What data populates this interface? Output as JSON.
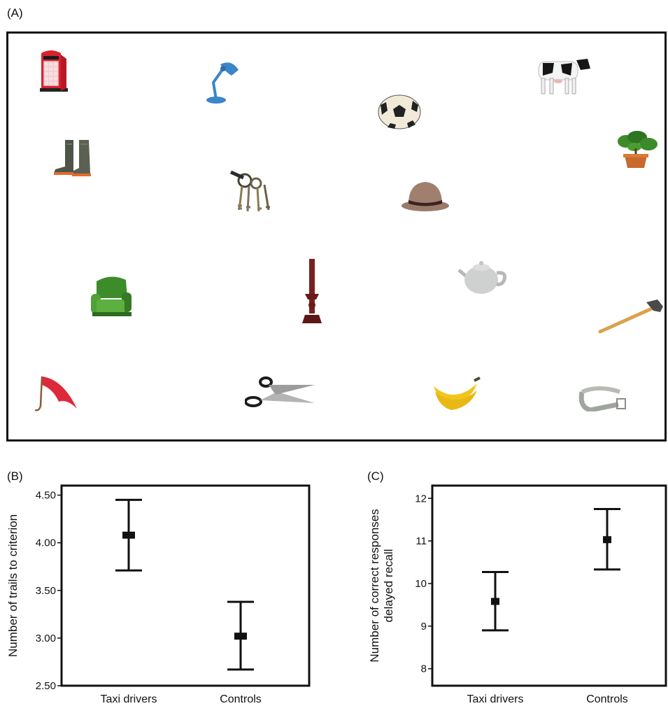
{
  "panel_labels": {
    "a": "(A)",
    "b": "(B)",
    "c": "(C)"
  },
  "objects": [
    {
      "name": "phone-box",
      "icon": "phone-box-icon"
    },
    {
      "name": "lamp",
      "icon": "desk-lamp-icon"
    },
    {
      "name": "football",
      "icon": "football-icon"
    },
    {
      "name": "cow",
      "icon": "cow-icon"
    },
    {
      "name": "boots",
      "icon": "boots-icon"
    },
    {
      "name": "keys",
      "icon": "keys-icon"
    },
    {
      "name": "hat",
      "icon": "hat-icon"
    },
    {
      "name": "plant",
      "icon": "potted-plant-icon"
    },
    {
      "name": "armchair",
      "icon": "armchair-icon"
    },
    {
      "name": "candlestick",
      "icon": "candlestick-icon"
    },
    {
      "name": "teapot",
      "icon": "teapot-icon"
    },
    {
      "name": "axe",
      "icon": "axe-icon"
    },
    {
      "name": "umbrella",
      "icon": "umbrella-icon"
    },
    {
      "name": "scissors",
      "icon": "scissors-icon"
    },
    {
      "name": "bananas",
      "icon": "bananas-icon"
    },
    {
      "name": "belt",
      "icon": "belt-icon"
    }
  ],
  "chart_data": [
    {
      "type": "scatter",
      "panel": "(B)",
      "categories": [
        "Taxi drivers",
        "Controls"
      ],
      "means": [
        4.08,
        3.02
      ],
      "error_low": [
        3.71,
        2.67
      ],
      "error_high": [
        4.45,
        3.38
      ],
      "ylabel": "Number of trails to criterion",
      "ylim": [
        2.5,
        4.6
      ],
      "yticks": [
        "2.50",
        "3.00",
        "3.50",
        "4.00",
        "4.50"
      ],
      "ytick_values": [
        2.5,
        3.0,
        3.5,
        4.0,
        4.5
      ],
      "grid": false
    },
    {
      "type": "scatter",
      "panel": "(C)",
      "categories": [
        "Taxi drivers",
        "Controls"
      ],
      "means": [
        9.58,
        11.03
      ],
      "error_low": [
        8.9,
        10.33
      ],
      "error_high": [
        10.27,
        11.75
      ],
      "ylabel_line1": "Number of correct responses",
      "ylabel_line2": "delayed recall",
      "ylim": [
        7.6,
        12.3
      ],
      "yticks": [
        "8",
        "9",
        "10",
        "11",
        "12"
      ],
      "ytick_values": [
        8,
        9,
        10,
        11,
        12
      ],
      "grid": false
    }
  ],
  "colors": {
    "phone_red": "#d8232f",
    "lamp_blue": "#3b86c9",
    "cow_black": "#161616",
    "boot": "#4e5548",
    "brass": "#8b7a55",
    "hat": "#a17f6e",
    "plant": "#3d8a2a",
    "pot": "#c9692d",
    "chair": "#3d8c2a",
    "candle": "#7a1f1f",
    "teapot": "#cfd1d1",
    "axe": "#d9a24b",
    "umbrella": "#dc2a3a",
    "banana": "#f2c51c",
    "belt": "#a0a59d"
  }
}
